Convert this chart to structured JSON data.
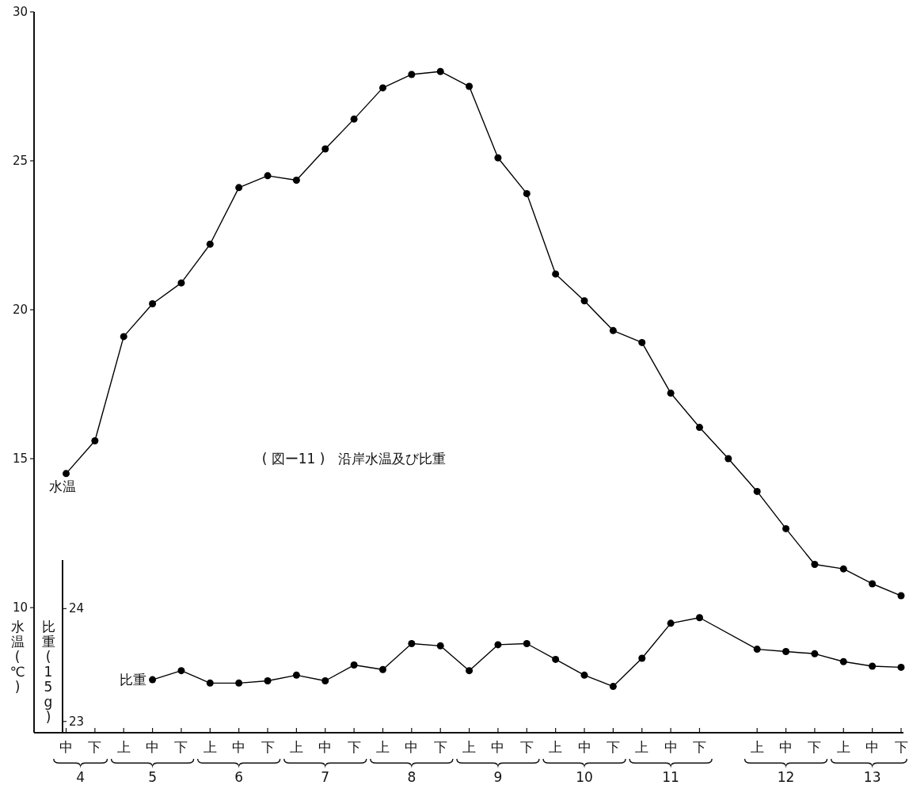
{
  "chart_data": {
    "type": "line",
    "title": "( 図ー11 )　沿岸水温及び比重",
    "ylabel": "水温(℃)",
    "y2label": "比重(15g)",
    "categories": [
      "中",
      "下",
      "上",
      "中",
      "下",
      "上",
      "中",
      "下",
      "上",
      "中",
      "下",
      "上",
      "中",
      "下",
      "上",
      "中",
      "下",
      "上",
      "中",
      "下",
      "上",
      "中",
      "下",
      null,
      "上",
      "中",
      "下",
      "上",
      "中",
      "下"
    ],
    "ylim": [
      5.8,
      30
    ],
    "yticks": [
      10,
      15,
      20,
      25,
      30
    ],
    "y2lim": [
      22.9,
      29.29
    ],
    "y2ticks": [
      23,
      24
    ],
    "marker": "circle",
    "line_style": "solid",
    "annotations": [
      "4",
      "5",
      "6",
      "7",
      "8",
      "9",
      "10",
      "11",
      "12",
      "13"
    ],
    "series": [
      {
        "name": "水温",
        "color": "#000000",
        "values": [
          14.5,
          15.6,
          19.1,
          20.2,
          20.9,
          22.2,
          24.1,
          24.5,
          24.35,
          25.4,
          26.4,
          27.45,
          27.9,
          28.0,
          27.5,
          25.1,
          23.9,
          21.2,
          20.3,
          19.3,
          18.9,
          17.2,
          16.05,
          15.0,
          13.9,
          12.65,
          11.45,
          11.3,
          10.8,
          10.4
        ]
      },
      {
        "name": "比重",
        "color": "#000000",
        "axis": "y2",
        "values": [
          null,
          null,
          null,
          23.37,
          23.45,
          23.34,
          23.34,
          23.36,
          23.41,
          23.36,
          23.5,
          23.46,
          23.69,
          23.67,
          23.45,
          23.68,
          23.69,
          23.55,
          23.41,
          23.31,
          23.56,
          23.87,
          23.92,
          null,
          23.64,
          23.62,
          23.6,
          23.53,
          23.49,
          23.48
        ]
      }
    ]
  }
}
